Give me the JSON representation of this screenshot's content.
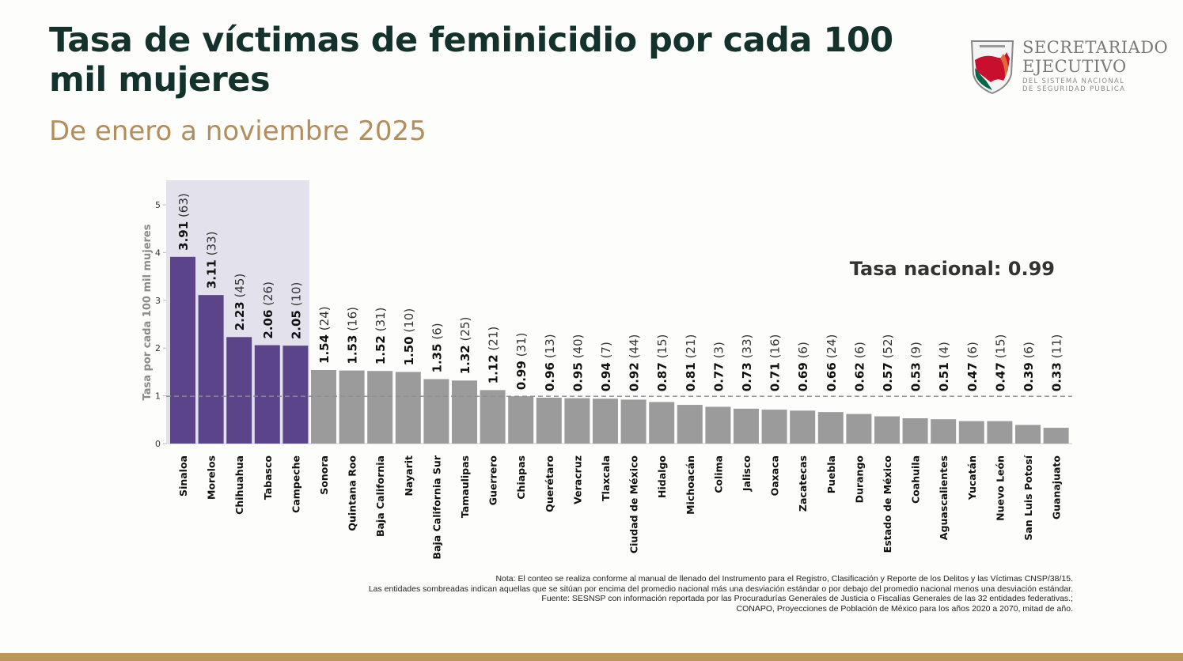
{
  "header": {
    "title": "Tasa de víctimas de feminicidio por cada 100 mil mujeres",
    "subtitle": "De enero a noviembre 2025"
  },
  "logo": {
    "line1": "SECRETARIADO",
    "line2": "EJECUTIVO",
    "line3": "DEL SISTEMA NACIONAL",
    "line4": "DE SEGURIDAD PÚBLICA",
    "colors": [
      "#c8102e",
      "#006847",
      "#b38e5d"
    ]
  },
  "chart_data": {
    "type": "bar",
    "ylabel": "Tasa por cada 100 mil mujeres",
    "ylim": [
      0,
      5
    ],
    "yticks": [
      0,
      1,
      2,
      3,
      4,
      5
    ],
    "reference_line": {
      "label": "Tasa nacional: 0.99",
      "value": 0.99,
      "style": "dashed"
    },
    "highlight_color": "#5b448a",
    "default_color": "#9b9b9b",
    "highlight_band_color": "#e3e2ec",
    "categories": [
      "Sinaloa",
      "Morelos",
      "Chihuahua",
      "Tabasco",
      "Campeche",
      "Sonora",
      "Quintana Roo",
      "Baja California",
      "Nayarit",
      "Baja California Sur",
      "Tamaulipas",
      "Guerrero",
      "Chiapas",
      "Querétaro",
      "Veracruz",
      "Tlaxcala",
      "Ciudad de México",
      "Hidalgo",
      "Michoacán",
      "Colima",
      "Jalisco",
      "Oaxaca",
      "Zacatecas",
      "Puebla",
      "Durango",
      "Estado de México",
      "Coahuila",
      "Aguascalientes",
      "Yucatán",
      "Nuevo León",
      "San Luis Potosí",
      "Guanajuato"
    ],
    "values": [
      3.91,
      3.11,
      2.23,
      2.06,
      2.05,
      1.54,
      1.53,
      1.52,
      1.5,
      1.35,
      1.32,
      1.12,
      0.99,
      0.96,
      0.95,
      0.94,
      0.92,
      0.87,
      0.81,
      0.77,
      0.73,
      0.71,
      0.69,
      0.66,
      0.62,
      0.57,
      0.53,
      0.51,
      0.47,
      0.47,
      0.39,
      0.33
    ],
    "value_labels": [
      "3.91",
      "3.11",
      "2.23",
      "2.06",
      "2.05",
      "1.54",
      "1.53",
      "1.52",
      "1.50",
      "1.35",
      "1.32",
      "1.12",
      "0.99",
      "0.96",
      "0.95",
      "0.94",
      "0.92",
      "0.87",
      "0.81",
      "0.77",
      "0.73",
      "0.71",
      "0.69",
      "0.66",
      "0.62",
      "0.57",
      "0.53",
      "0.51",
      "0.47",
      "0.47",
      "0.39",
      "0.33"
    ],
    "counts": [
      63,
      33,
      45,
      26,
      10,
      24,
      16,
      31,
      10,
      6,
      25,
      21,
      31,
      13,
      40,
      7,
      44,
      15,
      21,
      3,
      33,
      16,
      6,
      24,
      6,
      52,
      9,
      4,
      6,
      15,
      6,
      11
    ],
    "highlighted": [
      true,
      true,
      true,
      true,
      true,
      false,
      false,
      false,
      false,
      false,
      false,
      false,
      false,
      false,
      false,
      false,
      false,
      false,
      false,
      false,
      false,
      false,
      false,
      false,
      false,
      false,
      false,
      false,
      false,
      false,
      false,
      false
    ]
  },
  "notes": [
    "Nota: El conteo se realiza conforme al manual de llenado del Instrumento para el Registro, Clasificación y Reporte de los Delitos y las Víctimas CNSP/38/15.",
    "Las entidades sombreadas indican aquellas que se sitúan por encima del promedio nacional más una desviación estándar o por debajo del promedio nacional menos una desviación estándar.",
    "Fuente: SESNSP con información reportada por las Procuradurías Generales de Justicia o Fiscalías Generales de las 32 entidades federativas.;",
    "CONAPO, Proyecciones de Población de México para los años 2020 a 2070, mitad de año."
  ]
}
